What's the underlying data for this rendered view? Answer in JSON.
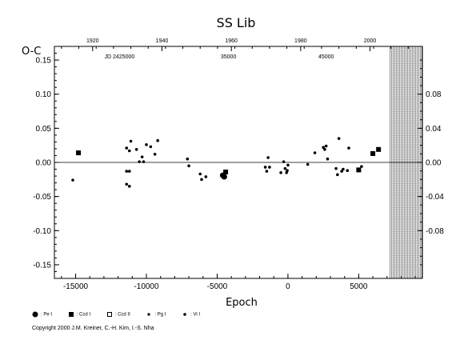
{
  "chart_data": {
    "type": "scatter",
    "title": "SS  Lib",
    "xlabel": "Epoch",
    "ylabel": "O-C",
    "xlim": [
      -16500,
      9500
    ],
    "ylim": [
      -0.17,
      0.17
    ],
    "x_ticks": [
      -15000,
      -10000,
      -5000,
      0,
      5000
    ],
    "x_tick_labels": [
      "-15000",
      "-10000",
      "-5000",
      "0",
      "5000"
    ],
    "y_ticks": [
      -0.15,
      -0.1,
      -0.05,
      0.0,
      0.05,
      0.1,
      0.15
    ],
    "y_tick_labels": [
      "-0.15",
      "-0.10",
      "-0.05",
      "0.00",
      "0.05",
      "0.10",
      "0.15"
    ],
    "top_axis": {
      "years": [
        {
          "x": -13800,
          "label": "1920"
        },
        {
          "x": -8900,
          "label": "1940"
        },
        {
          "x": -4000,
          "label": "1960"
        },
        {
          "x": 900,
          "label": "1980"
        },
        {
          "x": 5800,
          "label": "2000"
        }
      ],
      "jd": [
        {
          "x": -11900,
          "label": "JD 2425000"
        },
        {
          "x": -4200,
          "label": "35000"
        },
        {
          "x": 2700,
          "label": "45000"
        }
      ]
    },
    "right_axis": {
      "ticks": [
        -0.08,
        -0.04,
        0.0,
        0.04,
        0.08
      ],
      "labels": [
        "-0.08",
        "-0.04",
        "0.00",
        "0.04",
        "0.08"
      ]
    },
    "shaded_region_x": [
      7200,
      9500
    ],
    "grid": false,
    "legend_position": "bottom-left",
    "series": [
      {
        "name": "Pe I",
        "marker": "big-dot",
        "points": [
          [
            -4600,
            -0.019
          ],
          [
            -4500,
            -0.021
          ]
        ]
      },
      {
        "name": "Ccd I",
        "marker": "filled-square",
        "points": [
          [
            -14800,
            0.014
          ],
          [
            -4400,
            -0.014
          ],
          [
            5000,
            -0.011
          ],
          [
            6000,
            0.013
          ],
          [
            6400,
            0.019
          ]
        ]
      },
      {
        "name": "Ccd II",
        "marker": "open-square",
        "points": []
      },
      {
        "name": "Pg I",
        "marker": "small-square",
        "points": []
      },
      {
        "name": "Vi I",
        "marker": "small-dot",
        "points": [
          [
            -15200,
            -0.026
          ],
          [
            -11400,
            0.021
          ],
          [
            -11200,
            0.017
          ],
          [
            -11100,
            0.031
          ],
          [
            -11400,
            -0.013
          ],
          [
            -11200,
            -0.013
          ],
          [
            -11400,
            -0.032
          ],
          [
            -11200,
            -0.035
          ],
          [
            -10700,
            0.019
          ],
          [
            -10500,
            0.001
          ],
          [
            -10300,
            0.008
          ],
          [
            -10200,
            0.001
          ],
          [
            -10000,
            0.026
          ],
          [
            -9700,
            0.023
          ],
          [
            -9400,
            0.012
          ],
          [
            -9200,
            0.032
          ],
          [
            -7100,
            0.005
          ],
          [
            -7000,
            -0.005
          ],
          [
            -6200,
            -0.017
          ],
          [
            -6100,
            -0.025
          ],
          [
            -5800,
            -0.021
          ],
          [
            -1600,
            -0.007
          ],
          [
            -1500,
            -0.013
          ],
          [
            -1400,
            0.007
          ],
          [
            -1300,
            -0.007
          ],
          [
            -500,
            -0.015
          ],
          [
            -300,
            0.001
          ],
          [
            -200,
            -0.009
          ],
          [
            -100,
            -0.015
          ],
          [
            -50,
            -0.012
          ],
          [
            0,
            -0.004
          ],
          [
            1400,
            -0.003
          ],
          [
            1900,
            0.014
          ],
          [
            2500,
            0.022
          ],
          [
            2600,
            0.019
          ],
          [
            2700,
            0.024
          ],
          [
            2800,
            0.005
          ],
          [
            3400,
            -0.009
          ],
          [
            3500,
            -0.018
          ],
          [
            3600,
            0.035
          ],
          [
            3800,
            -0.013
          ],
          [
            3900,
            -0.01
          ],
          [
            4200,
            -0.012
          ],
          [
            4300,
            0.021
          ],
          [
            5200,
            -0.006
          ]
        ]
      }
    ]
  },
  "copyright": "Copyright 2000 J.M. Kreiner, C.-H. Kim, I.-S. Nha"
}
